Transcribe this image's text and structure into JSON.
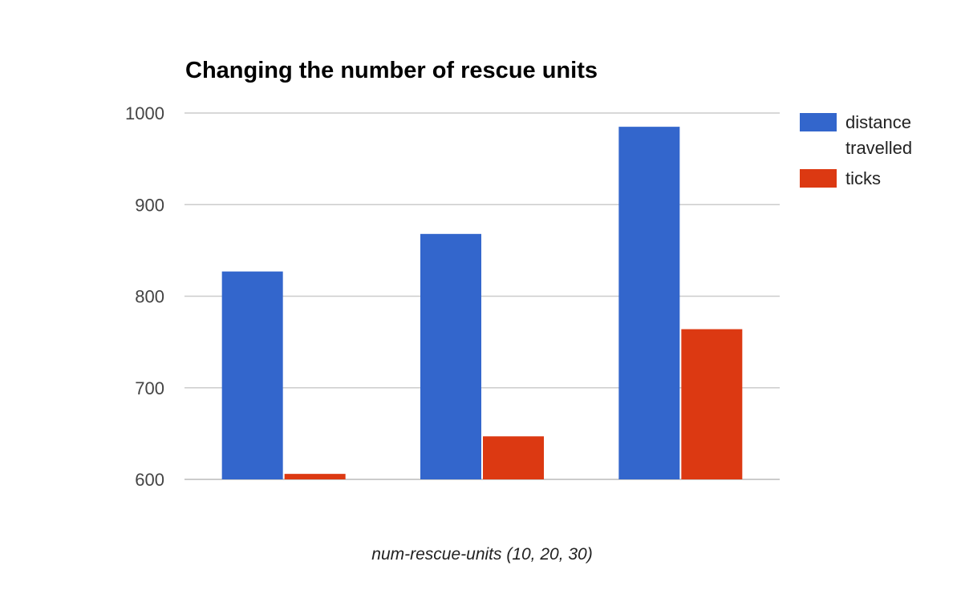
{
  "chart_data": {
    "type": "bar",
    "title": "Changing the number of rescue units",
    "xlabel": "num-rescue-units (10, 20, 30)",
    "ylabel": "",
    "categories": [
      "",
      "",
      ""
    ],
    "ylim": [
      600,
      1000
    ],
    "yticks": [
      "600",
      "700",
      "800",
      "900",
      "1000"
    ],
    "grid": true,
    "legend_position": "right",
    "series": [
      {
        "name": "distance travelled",
        "legend_lines": [
          "distance",
          "travelled"
        ],
        "color": "#3366cc",
        "values": [
          827,
          868,
          985
        ]
      },
      {
        "name": "ticks",
        "legend_lines": [
          "ticks"
        ],
        "color": "#dc3912",
        "values": [
          606,
          647,
          764
        ]
      }
    ]
  }
}
